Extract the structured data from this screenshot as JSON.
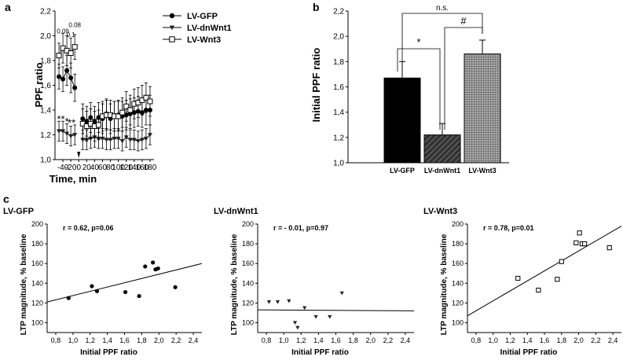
{
  "panel_labels": {
    "a": "a",
    "b": "b",
    "c": "c"
  },
  "chart_data": [
    {
      "type": "line",
      "xlabel": "Time, min",
      "ylabel": "PPF ratio",
      "xlim": [
        -60,
        190
      ],
      "ylim": [
        1.0,
        2.2
      ],
      "x_ticks": [
        "-40",
        "-20",
        "0",
        "20",
        "40",
        "60",
        "80",
        "100",
        "120",
        "140",
        "160",
        "180"
      ],
      "y_ticks": [
        "1,0",
        "1,2",
        "1,4",
        "1,6",
        "1,8",
        "2,0",
        "2,2"
      ],
      "legend": {
        "position": "top-right"
      },
      "series": [
        {
          "name": "LV-GFP",
          "marker": "circle-filled",
          "x": [
            -50,
            -40,
            -30,
            -20,
            -10,
            10,
            20,
            30,
            40,
            50,
            60,
            70,
            80,
            90,
            100,
            110,
            120,
            130,
            140,
            150,
            160,
            170,
            180
          ],
          "values": [
            1.67,
            1.65,
            1.72,
            1.66,
            1.58,
            1.33,
            1.31,
            1.34,
            1.31,
            1.34,
            1.33,
            1.37,
            1.33,
            1.35,
            1.36,
            1.35,
            1.36,
            1.37,
            1.38,
            1.39,
            1.38,
            1.4,
            1.4
          ],
          "err": [
            0.1,
            0.1,
            0.12,
            0.12,
            0.11,
            0.12,
            0.12,
            0.12,
            0.12,
            0.12,
            0.12,
            0.12,
            0.12,
            0.12,
            0.12,
            0.12,
            0.12,
            0.12,
            0.12,
            0.12,
            0.12,
            0.12,
            0.12
          ]
        },
        {
          "name": "LV-dnWnt1",
          "marker": "triangle-down-filled",
          "x": [
            -50,
            -40,
            -30,
            -20,
            -10,
            10,
            20,
            30,
            40,
            50,
            60,
            70,
            80,
            90,
            100,
            110,
            120,
            130,
            140,
            150,
            160,
            170,
            180
          ],
          "values": [
            1.23,
            1.23,
            1.21,
            1.19,
            1.2,
            1.16,
            1.16,
            1.17,
            1.18,
            1.17,
            1.17,
            1.16,
            1.16,
            1.17,
            1.17,
            1.15,
            1.18,
            1.16,
            1.16,
            1.15,
            1.16,
            1.17,
            1.2
          ],
          "err": [
            0.08,
            0.08,
            0.08,
            0.08,
            0.08,
            0.08,
            0.08,
            0.08,
            0.08,
            0.08,
            0.08,
            0.08,
            0.08,
            0.08,
            0.08,
            0.08,
            0.08,
            0.08,
            0.08,
            0.08,
            0.08,
            0.08,
            0.08
          ]
        },
        {
          "name": "LV-Wnt3",
          "marker": "square-open",
          "x": [
            -50,
            -40,
            -30,
            -20,
            -10,
            10,
            20,
            30,
            40,
            50,
            60,
            70,
            80,
            90,
            100,
            110,
            120,
            130,
            140,
            150,
            160,
            170,
            180
          ],
          "values": [
            1.84,
            1.9,
            1.88,
            1.86,
            1.91,
            1.29,
            1.27,
            1.29,
            1.27,
            1.28,
            1.35,
            1.36,
            1.36,
            1.35,
            1.35,
            1.38,
            1.43,
            1.4,
            1.45,
            1.46,
            1.48,
            1.5,
            1.47
          ],
          "err": [
            0.1,
            0.12,
            0.12,
            0.12,
            0.1,
            0.12,
            0.12,
            0.12,
            0.12,
            0.12,
            0.12,
            0.12,
            0.12,
            0.12,
            0.12,
            0.12,
            0.12,
            0.12,
            0.12,
            0.12,
            0.12,
            0.12,
            0.12
          ]
        }
      ],
      "annotations": [
        {
          "text": "0.09",
          "x": -40,
          "y": 2.02
        },
        {
          "text": "0.1",
          "x": -20,
          "y": 1.99
        },
        {
          "text": "0.08",
          "x": -10,
          "y": 2.07
        },
        {
          "text": "**",
          "x": -45,
          "y": 1.3
        },
        {
          "text": "*",
          "x": -30,
          "y": 1.28
        },
        {
          "text": "**",
          "x": -18,
          "y": 1.27
        }
      ]
    },
    {
      "type": "bar",
      "ylabel": "Initial PPF ratio",
      "ylim": [
        1.0,
        2.2
      ],
      "y_ticks": [
        "1,0",
        "1,2",
        "1,4",
        "1,6",
        "1,8",
        "2,0",
        "2,2"
      ],
      "categories": [
        "LV-GFP",
        "LV-dnWnt1",
        "LV-Wnt3"
      ],
      "values": [
        1.67,
        1.22,
        1.86
      ],
      "err": [
        0.13,
        0.09,
        0.11
      ],
      "fills": [
        "#000000",
        "hatch",
        "grid"
      ],
      "significance": [
        {
          "pair": [
            "LV-GFP",
            "LV-Wnt3"
          ],
          "label": "n.s."
        },
        {
          "pair": [
            "LV-GFP",
            "LV-dnWnt1"
          ],
          "label": "*"
        },
        {
          "pair": [
            "LV-dnWnt1",
            "LV-Wnt3"
          ],
          "label": "#"
        }
      ]
    },
    {
      "type": "scatter",
      "title": "LV-GFP",
      "stat": "r = 0.62, p=0.06",
      "xlabel": "Initial PPF ratio",
      "ylabel": "LTP magnitude, % baseline",
      "xlim": [
        0.7,
        2.5
      ],
      "ylim": [
        90,
        200
      ],
      "x_ticks": [
        "0,8",
        "1,0",
        "1,2",
        "1,4",
        "1,6",
        "1,8",
        "2,0",
        "2,2",
        "2,4"
      ],
      "y_ticks": [
        "100",
        "120",
        "140",
        "160",
        "180",
        "200"
      ],
      "marker": "circle-filled",
      "x": [
        0.95,
        1.22,
        1.28,
        1.61,
        1.77,
        1.84,
        1.93,
        1.96,
        1.99,
        2.19
      ],
      "y": [
        125,
        137,
        132,
        131,
        127,
        157,
        161,
        154,
        155,
        136
      ],
      "fit": {
        "x": [
          0.7,
          2.5
        ],
        "y": [
          121,
          160
        ]
      }
    },
    {
      "type": "scatter",
      "title": "LV-dnWnt1",
      "stat": "r = - 0.01, p=0.97",
      "xlabel": "Initial PPF ratio",
      "ylabel": "LTP magnitude, % baseline",
      "xlim": [
        0.7,
        2.5
      ],
      "ylim": [
        90,
        200
      ],
      "x_ticks": [
        "0,8",
        "1,0",
        "1,2",
        "1,4",
        "1,6",
        "1,8",
        "2,0",
        "2,2",
        "2,4"
      ],
      "y_ticks": [
        "100",
        "120",
        "140",
        "160",
        "180",
        "200"
      ],
      "marker": "triangle-down-filled",
      "x": [
        0.83,
        0.93,
        1.06,
        1.13,
        1.16,
        1.24,
        1.37,
        1.53,
        1.67
      ],
      "y": [
        121,
        121,
        122,
        100,
        95,
        115,
        106,
        106,
        130
      ],
      "fit": {
        "x": [
          0.7,
          2.5
        ],
        "y": [
          113,
          112
        ]
      }
    },
    {
      "type": "scatter",
      "title": "LV-Wnt3",
      "stat": "r = 0.78, p=0.01",
      "xlabel": "Initial PPF ratio",
      "ylabel": "LTP magnitude, % baseline",
      "xlim": [
        0.7,
        2.5
      ],
      "ylim": [
        90,
        200
      ],
      "x_ticks": [
        "0,8",
        "1,0",
        "1,2",
        "1,4",
        "1,6",
        "1,8",
        "2,0",
        "2,2",
        "2,4"
      ],
      "y_ticks": [
        "100",
        "120",
        "140",
        "160",
        "180",
        "200"
      ],
      "marker": "square-open",
      "x": [
        1.29,
        1.53,
        1.75,
        1.8,
        1.97,
        2.01,
        2.04,
        2.07,
        2.36
      ],
      "y": [
        145,
        133,
        144,
        162,
        181,
        191,
        180,
        180,
        176
      ],
      "fit": {
        "x": [
          0.7,
          2.5
        ],
        "y": [
          107,
          198
        ]
      }
    }
  ]
}
